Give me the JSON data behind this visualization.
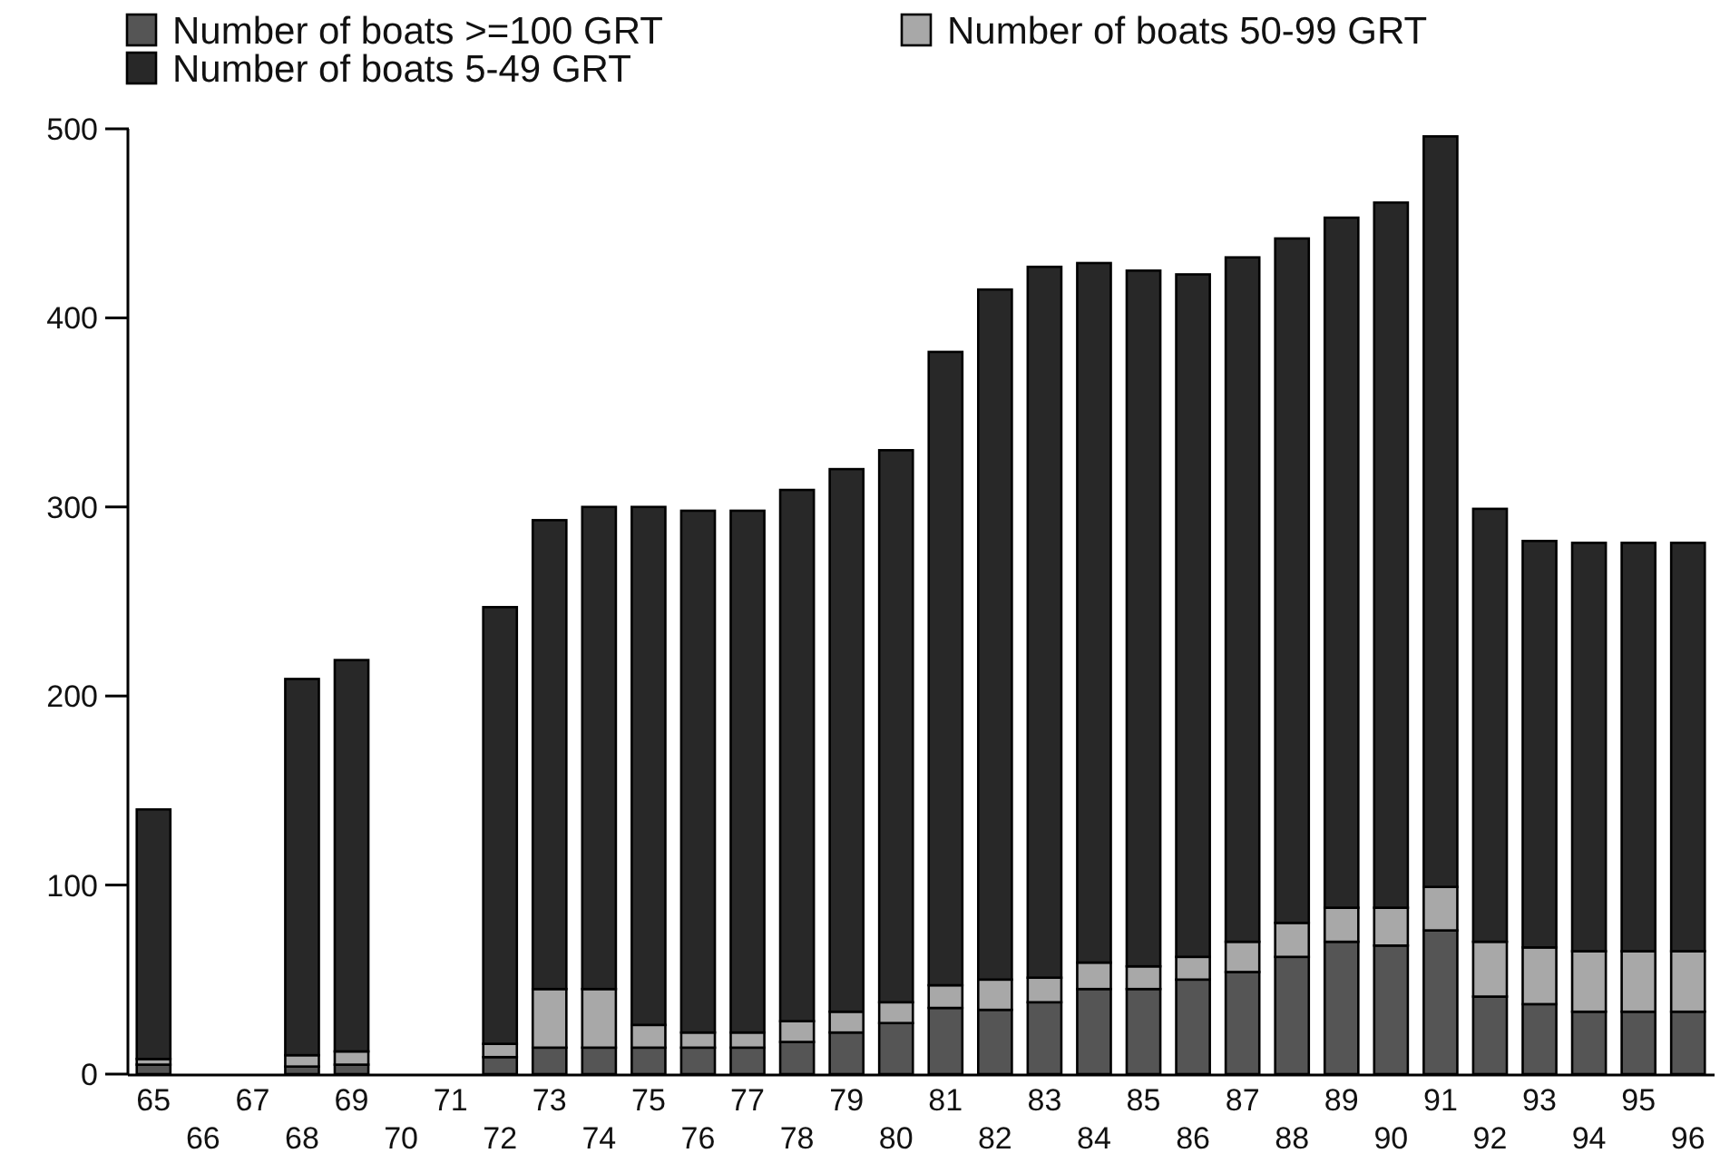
{
  "chart_data": {
    "type": "bar",
    "stacked": true,
    "legend": "top",
    "categories": [
      "65",
      "66",
      "67",
      "68",
      "69",
      "70",
      "71",
      "72",
      "73",
      "74",
      "75",
      "76",
      "77",
      "78",
      "79",
      "80",
      "81",
      "82",
      "83",
      "84",
      "85",
      "86",
      "87",
      "88",
      "89",
      "90",
      "91",
      "92",
      "93",
      "94",
      "95",
      "96"
    ],
    "series": [
      {
        "name": "Number of boats >=100 GRT",
        "color": "#555555",
        "values": [
          5,
          null,
          null,
          4,
          5,
          null,
          null,
          9,
          14,
          14,
          14,
          14,
          14,
          17,
          22,
          27,
          35,
          34,
          38,
          45,
          45,
          50,
          54,
          62,
          70,
          68,
          76,
          41,
          37,
          33,
          33,
          33
        ]
      },
      {
        "name": "Number of boats 50-99 GRT",
        "color": "#a8a8a8",
        "values": [
          3,
          null,
          null,
          6,
          7,
          null,
          null,
          7,
          31,
          31,
          12,
          8,
          8,
          11,
          11,
          11,
          12,
          16,
          13,
          14,
          12,
          12,
          16,
          18,
          18,
          20,
          23,
          29,
          30,
          32,
          32,
          32
        ]
      },
      {
        "name": "Number of boats 5-49 GRT",
        "color": "#282828",
        "values": [
          132,
          null,
          null,
          199,
          207,
          null,
          null,
          231,
          248,
          255,
          274,
          276,
          276,
          281,
          287,
          292,
          335,
          365,
          376,
          370,
          368,
          361,
          362,
          362,
          365,
          373,
          397,
          229,
          215,
          216,
          216,
          216
        ]
      }
    ],
    "ylim": [
      0,
      500
    ],
    "yticks": [
      0,
      100,
      200,
      300,
      400,
      500
    ]
  }
}
